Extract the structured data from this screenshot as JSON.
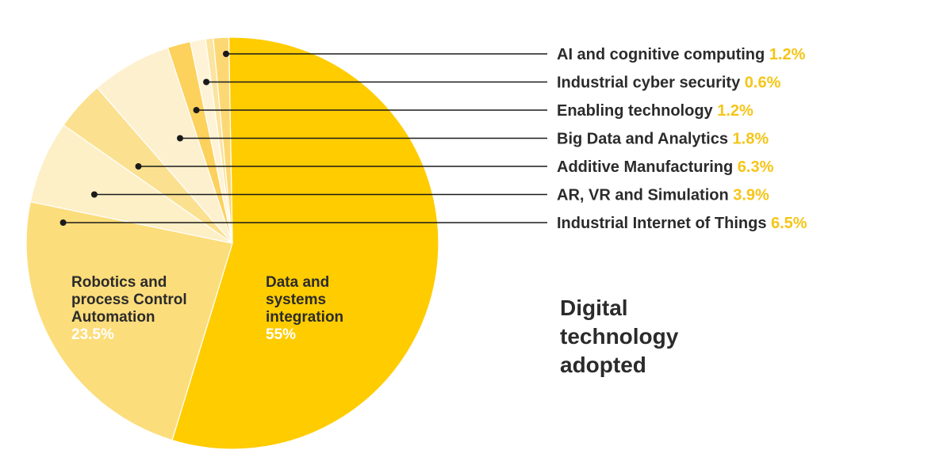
{
  "chart_data": {
    "type": "pie",
    "title": "Digital technology adopted",
    "title_lines": [
      "Digital",
      "technology",
      "adopted"
    ],
    "slices": [
      {
        "label": "Data and systems integration",
        "label_lines": [
          "Data and",
          "systems",
          "integration"
        ],
        "value": 55,
        "value_text": "55%",
        "color": "#FFCC00",
        "placement": "inside"
      },
      {
        "label": "Robotics and process Control Automation",
        "label_lines": [
          "Robotics and",
          "process Control",
          "Automation"
        ],
        "value": 23.5,
        "value_text": "23.5%",
        "color": "#FCDD7B",
        "placement": "inside"
      },
      {
        "label": "Industrial Internet of Things",
        "value": 6.5,
        "value_text": "6.5%",
        "color": "#FDEFC6",
        "placement": "callout"
      },
      {
        "label": "AR, VR and Simulation",
        "value": 3.9,
        "value_text": "3.9%",
        "color": "#FBE08F",
        "placement": "callout"
      },
      {
        "label": "Additive Manufacturing",
        "value": 6.3,
        "value_text": "6.3%",
        "color": "#FDF0CF",
        "placement": "callout"
      },
      {
        "label": "Big Data and Analytics",
        "value": 1.8,
        "value_text": "1.8%",
        "color": "#FCD15C",
        "placement": "callout"
      },
      {
        "label": "Enabling technology",
        "value": 1.2,
        "value_text": "1.2%",
        "color": "#FEF3D6",
        "placement": "callout"
      },
      {
        "label": "Industrial cyber security",
        "value": 0.6,
        "value_text": "0.6%",
        "color": "#FBE4A0",
        "placement": "callout"
      },
      {
        "label": "AI and cognitive computing",
        "value": 1.2,
        "value_text": "1.2%",
        "color": "#FCD874",
        "placement": "callout"
      }
    ],
    "callout_order": [
      "AI and cognitive computing",
      "Industrial cyber security",
      "Enabling technology",
      "Big Data and Analytics",
      "Additive Manufacturing",
      "AR, VR and Simulation",
      "Industrial Internet of Things"
    ],
    "value_color": "#F5C518",
    "leader_color": "#1a1a1a"
  }
}
